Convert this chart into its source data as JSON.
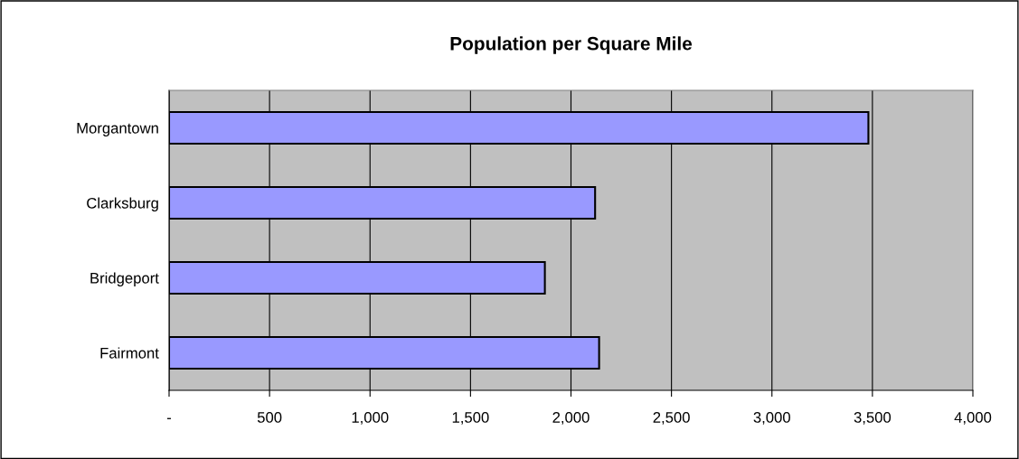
{
  "chart_data": {
    "type": "bar",
    "orientation": "horizontal",
    "title": "Population per Square Mile",
    "categories": [
      "Morgantown",
      "Clarksburg",
      "Bridgeport",
      "Fairmont"
    ],
    "values": [
      3480,
      2120,
      1870,
      2140
    ],
    "color": "#9999ff",
    "xlim": [
      0,
      4000
    ],
    "xticks": [
      {
        "value": 0,
        "label": "-"
      },
      {
        "value": 500,
        "label": "500"
      },
      {
        "value": 1000,
        "label": "1,000"
      },
      {
        "value": 1500,
        "label": "1,500"
      },
      {
        "value": 2000,
        "label": "2,000"
      },
      {
        "value": 2500,
        "label": "2,500"
      },
      {
        "value": 3000,
        "label": "3,000"
      },
      {
        "value": 3500,
        "label": "3,500"
      },
      {
        "value": 4000,
        "label": "4,000"
      }
    ],
    "grid": "x"
  }
}
